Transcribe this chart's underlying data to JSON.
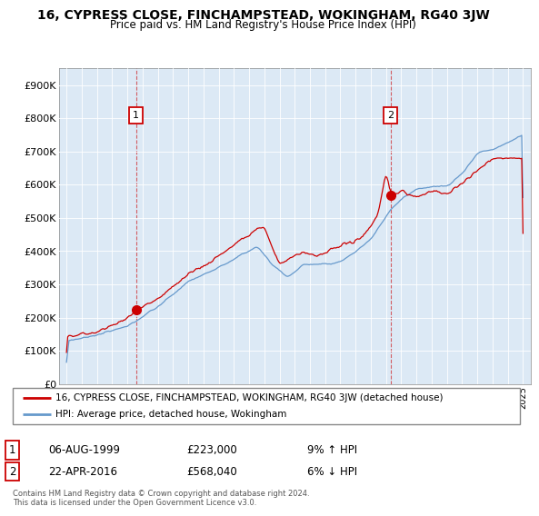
{
  "title": "16, CYPRESS CLOSE, FINCHAMPSTEAD, WOKINGHAM, RG40 3JW",
  "subtitle": "Price paid vs. HM Land Registry's House Price Index (HPI)",
  "ylabel_ticks": [
    "£0",
    "£100K",
    "£200K",
    "£300K",
    "£400K",
    "£500K",
    "£600K",
    "£700K",
    "£800K",
    "£900K"
  ],
  "ytick_values": [
    0,
    100000,
    200000,
    300000,
    400000,
    500000,
    600000,
    700000,
    800000,
    900000
  ],
  "ylim": [
    0,
    950000
  ],
  "xlim_start": 1994.5,
  "xlim_end": 2025.5,
  "sale1_x": 1999.58,
  "sale1_y": 223000,
  "sale1_label": "1",
  "sale1_date": "06-AUG-1999",
  "sale1_price": "£223,000",
  "sale1_hpi": "9% ↑ HPI",
  "sale2_x": 2016.3,
  "sale2_y": 568040,
  "sale2_label": "2",
  "sale2_date": "22-APR-2016",
  "sale2_price": "£568,040",
  "sale2_hpi": "6% ↓ HPI",
  "line1_color": "#cc0000",
  "line2_color": "#6699cc",
  "chart_bg": "#dce9f5",
  "legend_line1": "16, CYPRESS CLOSE, FINCHAMPSTEAD, WOKINGHAM, RG40 3JW (detached house)",
  "legend_line2": "HPI: Average price, detached house, Wokingham",
  "footer": "Contains HM Land Registry data © Crown copyright and database right 2024.\nThis data is licensed under the Open Government Licence v3.0.",
  "bg_color": "#ffffff",
  "grid_color": "#aaaacc"
}
